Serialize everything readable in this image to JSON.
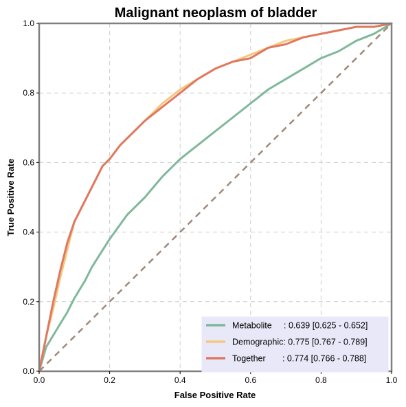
{
  "chart_data": {
    "type": "line",
    "title": "Malignant neoplasm of bladder",
    "xlabel": "False Positive Rate",
    "ylabel": "True Positive Rate",
    "xlim": [
      0,
      1
    ],
    "ylim": [
      0,
      1
    ],
    "xticks": [
      "0.0",
      "0.2",
      "0.4",
      "0.6",
      "0.8",
      "1.0"
    ],
    "yticks": [
      "0.0",
      "0.2",
      "0.4",
      "0.6",
      "0.8",
      "1.0"
    ],
    "grid": true,
    "legend_position": "bottom-right",
    "series": [
      {
        "name": "Metabolite",
        "legend_label": "Metabolite     : 0.639 [0.625 - 0.652]",
        "color": "#7fb89a",
        "x": [
          0.0,
          0.02,
          0.05,
          0.08,
          0.1,
          0.13,
          0.15,
          0.2,
          0.25,
          0.3,
          0.35,
          0.4,
          0.45,
          0.5,
          0.55,
          0.6,
          0.65,
          0.7,
          0.75,
          0.8,
          0.85,
          0.9,
          0.95,
          1.0
        ],
        "y": [
          0.0,
          0.07,
          0.12,
          0.17,
          0.21,
          0.26,
          0.3,
          0.38,
          0.45,
          0.5,
          0.56,
          0.61,
          0.65,
          0.69,
          0.73,
          0.77,
          0.81,
          0.84,
          0.87,
          0.9,
          0.92,
          0.95,
          0.97,
          1.0
        ]
      },
      {
        "name": "Demographic",
        "legend_label": "Demographic: 0.775 [0.767 - 0.789]",
        "color": "#f5c77e",
        "x": [
          0.0,
          0.02,
          0.04,
          0.06,
          0.08,
          0.1,
          0.12,
          0.15,
          0.18,
          0.2,
          0.23,
          0.26,
          0.3,
          0.35,
          0.4,
          0.45,
          0.5,
          0.55,
          0.6,
          0.65,
          0.7,
          0.75,
          0.8,
          0.85,
          0.9,
          0.95,
          1.0
        ],
        "y": [
          0.0,
          0.1,
          0.18,
          0.27,
          0.35,
          0.43,
          0.47,
          0.53,
          0.59,
          0.61,
          0.65,
          0.68,
          0.72,
          0.77,
          0.81,
          0.84,
          0.87,
          0.89,
          0.91,
          0.93,
          0.95,
          0.96,
          0.97,
          0.98,
          0.99,
          0.99,
          1.0
        ]
      },
      {
        "name": "Together",
        "legend_label": "Together       : 0.774 [0.766 - 0.788]",
        "color": "#e07860",
        "x": [
          0.0,
          0.02,
          0.04,
          0.06,
          0.08,
          0.1,
          0.12,
          0.15,
          0.18,
          0.2,
          0.23,
          0.26,
          0.3,
          0.35,
          0.4,
          0.45,
          0.5,
          0.55,
          0.6,
          0.65,
          0.7,
          0.75,
          0.8,
          0.85,
          0.9,
          0.95,
          1.0
        ],
        "y": [
          0.0,
          0.1,
          0.2,
          0.29,
          0.37,
          0.43,
          0.47,
          0.53,
          0.59,
          0.61,
          0.65,
          0.68,
          0.72,
          0.76,
          0.8,
          0.84,
          0.87,
          0.89,
          0.9,
          0.93,
          0.94,
          0.96,
          0.97,
          0.98,
          0.99,
          0.99,
          1.0
        ]
      },
      {
        "name": "chance",
        "color": "#a08878",
        "dashed": true,
        "x": [
          0,
          1
        ],
        "y": [
          0,
          1
        ]
      }
    ]
  }
}
